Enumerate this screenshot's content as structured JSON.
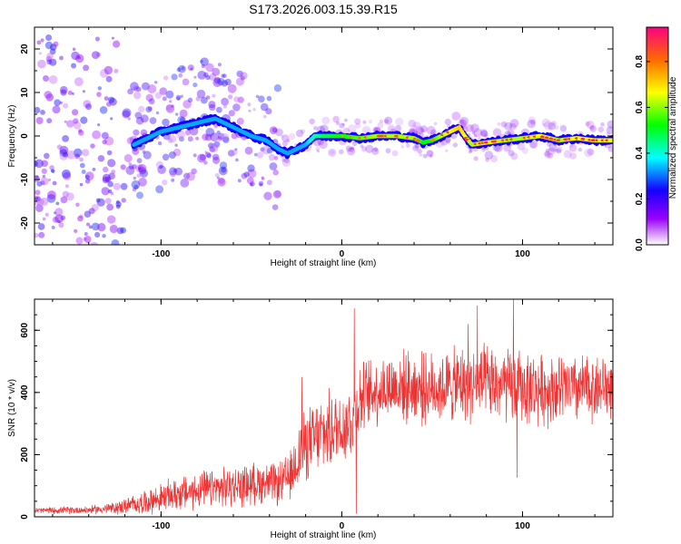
{
  "title": "S173.2026.003.15.39.R15",
  "colors": {
    "snr_line": "#ef3333",
    "frame": "#000000",
    "background": "#ffffff"
  },
  "chart_data": [
    {
      "type": "heatmap",
      "name": "spectrogram",
      "xlabel": "Height of straight line (km)",
      "ylabel": "Frequency (Hz)",
      "xlim": [
        -170,
        150
      ],
      "ylim": [
        -25,
        25
      ],
      "x_ticks": [
        -100,
        0,
        100
      ],
      "y_ticks": [
        -20,
        -10,
        0,
        10,
        20
      ],
      "x_tick_labels": [
        "-100",
        "0",
        "100"
      ],
      "y_tick_labels": [
        "-20",
        "-10",
        "0",
        "10",
        "20"
      ],
      "ridge": {
        "x": [
          -115,
          -100,
          -90,
          -80,
          -70,
          -60,
          -50,
          -42,
          -35,
          -30,
          -25,
          -20,
          -15,
          -10,
          0,
          10,
          20,
          30,
          40,
          45,
          50,
          55,
          60,
          65,
          68,
          72,
          80,
          90,
          100,
          110,
          120,
          130,
          140,
          150
        ],
        "freq": [
          -2,
          1,
          2,
          3,
          4,
          2,
          0,
          -1,
          -3,
          -4,
          -3,
          -2,
          0,
          0,
          0,
          -0.5,
          0,
          0,
          -0.5,
          -1.5,
          -1,
          0,
          1,
          2,
          0,
          -2,
          -1.5,
          -1,
          -0.5,
          0,
          -1,
          -0.5,
          -1,
          -1
        ],
        "amplitude": [
          0.3,
          0.3,
          0.35,
          0.35,
          0.3,
          0.3,
          0.3,
          0.3,
          0.35,
          0.4,
          0.45,
          0.5,
          0.6,
          0.65,
          0.7,
          0.75,
          0.8,
          0.8,
          0.8,
          0.7,
          0.7,
          0.8,
          0.85,
          0.9,
          0.85,
          0.8,
          0.85,
          0.8,
          0.8,
          0.85,
          0.8,
          0.85,
          0.85,
          0.85
        ]
      },
      "colorbar": {
        "label": "Normalized spectral amplitude",
        "range": [
          0,
          0.95
        ],
        "ticks": [
          0.0,
          0.2,
          0.4,
          0.6,
          0.8
        ],
        "tick_labels": [
          "0.0",
          "0.2",
          "0.4",
          "0.6",
          "0.8"
        ]
      }
    },
    {
      "type": "line",
      "name": "snr",
      "xlabel": "Height of straight line (km)",
      "ylabel": "SNR (10 * v/v)",
      "xlim": [
        -170,
        150
      ],
      "ylim": [
        0,
        700
      ],
      "x_ticks": [
        -100,
        0,
        100
      ],
      "y_ticks": [
        0,
        200,
        400,
        600
      ],
      "x_tick_labels": [
        "-100",
        "0",
        "100"
      ],
      "y_tick_labels": [
        "0",
        "200",
        "400",
        "600"
      ],
      "series": [
        {
          "name": "SNR",
          "envelope": {
            "x": [
              -170,
              -140,
              -125,
              -110,
              -90,
              -70,
              -55,
              -45,
              -35,
              -28,
              -24,
              -20,
              -12,
              -5,
              5,
              10,
              20,
              30,
              50,
              70,
              90,
              110,
              130,
              150
            ],
            "mean": [
              20,
              22,
              28,
              45,
              75,
              90,
              100,
              110,
              105,
              130,
              200,
              230,
              260,
              280,
              300,
              380,
              410,
              420,
              410,
              430,
              420,
              410,
              410,
              420
            ],
            "spread": [
              10,
              12,
              20,
              35,
              55,
              60,
              65,
              65,
              65,
              80,
              110,
              110,
              120,
              120,
              120,
              110,
              110,
              110,
              110,
              120,
              120,
              110,
              110,
              100
            ]
          },
          "spikes": [
            {
              "x": -22,
              "y": 450
            },
            {
              "x": 7,
              "y": 670
            },
            {
              "x": 8,
              "y": 10
            },
            {
              "x": 70,
              "y": 620
            },
            {
              "x": 75,
              "y": 680
            },
            {
              "x": 95,
              "y": 700
            },
            {
              "x": 97,
              "y": 125
            }
          ]
        }
      ]
    }
  ]
}
